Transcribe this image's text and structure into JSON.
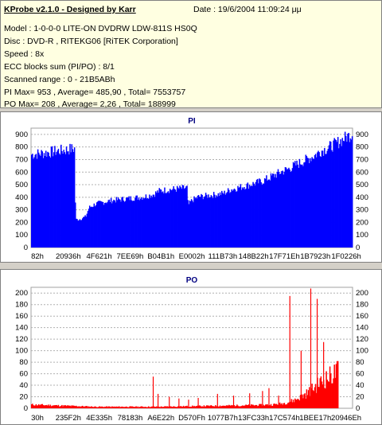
{
  "info": {
    "title": "KProbe v2.1.0 - Designed by Karr",
    "date": "Date : 19/6/2004 11:09:24 μμ",
    "lines": [
      "Model : 1-0-0-0 LITE-ON DVDRW LDW-811S   HS0Q",
      "Disc : DVD-R , RITEKG06 [RiTEK Corporation]",
      "Speed : 8x",
      "ECC blocks sum (PI/PO) : 8/1",
      "Scanned range : 0 - 21B5ABh",
      "PI Max= 953 , Average= 485,90 , Total= 7553757",
      "PO Max= 208 , Average= 2,26 , Total= 188999"
    ]
  },
  "chart_data": [
    {
      "type": "area",
      "title": "PI",
      "color": "#0000ff",
      "ylim": [
        0,
        950
      ],
      "yticks": [
        0,
        100,
        200,
        300,
        400,
        500,
        600,
        700,
        800,
        900
      ],
      "xticks": [
        "82h",
        "20936h",
        "4F621h",
        "7EE69h",
        "B04B1h",
        "E0002h",
        "111B73h",
        "148B22h",
        "17F71Eh",
        "1B7923h",
        "1F0226h"
      ],
      "profile": [
        [
          0,
          770
        ],
        [
          3,
          780
        ],
        [
          6,
          790
        ],
        [
          8,
          800
        ],
        [
          10,
          805
        ],
        [
          12,
          815
        ],
        [
          13.6,
          820
        ],
        [
          13.8,
          230
        ],
        [
          15,
          235
        ],
        [
          17,
          255
        ],
        [
          18,
          330
        ],
        [
          20,
          360
        ],
        [
          25,
          390
        ],
        [
          30,
          405
        ],
        [
          35,
          420
        ],
        [
          38,
          440
        ],
        [
          40,
          470
        ],
        [
          43,
          480
        ],
        [
          47,
          490
        ],
        [
          48.5,
          495
        ],
        [
          48.8,
          350
        ],
        [
          50,
          390
        ],
        [
          52,
          420
        ],
        [
          55,
          430
        ],
        [
          58,
          440
        ],
        [
          60,
          450
        ],
        [
          62,
          480
        ],
        [
          65,
          500
        ],
        [
          68,
          520
        ],
        [
          70,
          535
        ],
        [
          72,
          550
        ],
        [
          75,
          590
        ],
        [
          78,
          630
        ],
        [
          80,
          650
        ],
        [
          82,
          680
        ],
        [
          85,
          720
        ],
        [
          88,
          760
        ],
        [
          90,
          800
        ],
        [
          92,
          820
        ],
        [
          94,
          850
        ],
        [
          96,
          880
        ],
        [
          98,
          915
        ],
        [
          100,
          945
        ]
      ]
    },
    {
      "type": "bar",
      "title": "PO",
      "color": "#ff0000",
      "ylim": [
        0,
        210
      ],
      "yticks": [
        0,
        20,
        40,
        60,
        80,
        100,
        120,
        140,
        160,
        180,
        200
      ],
      "xticks": [
        "30h",
        "235F2h",
        "4E335h",
        "78183h",
        "A6E22h",
        "D570Fh",
        "1077B7h",
        "13FC33h",
        "17C574h",
        "1BEE17h",
        "20946Eh"
      ],
      "profile": [
        [
          0,
          7
        ],
        [
          10,
          5
        ],
        [
          20,
          3
        ],
        [
          30,
          3
        ],
        [
          40,
          3
        ],
        [
          50,
          4
        ],
        [
          60,
          5
        ],
        [
          70,
          6
        ],
        [
          75,
          7
        ],
        [
          78,
          9
        ],
        [
          80,
          12
        ],
        [
          82,
          16
        ],
        [
          84,
          22
        ],
        [
          86,
          30
        ],
        [
          88,
          40
        ],
        [
          90,
          50
        ],
        [
          92,
          58
        ],
        [
          94,
          66
        ],
        [
          95.5,
          72
        ]
      ],
      "spikes": [
        [
          38,
          55
        ],
        [
          39.5,
          25
        ],
        [
          43,
          20
        ],
        [
          46,
          17
        ],
        [
          49,
          15
        ],
        [
          52,
          18
        ],
        [
          58,
          25
        ],
        [
          63,
          22
        ],
        [
          68,
          26
        ],
        [
          72,
          30
        ],
        [
          74,
          35
        ],
        [
          77,
          22
        ],
        [
          80.5,
          195
        ],
        [
          84,
          100
        ],
        [
          87,
          208
        ],
        [
          89,
          190
        ],
        [
          91,
          115
        ],
        [
          93,
          60
        ]
      ]
    }
  ]
}
